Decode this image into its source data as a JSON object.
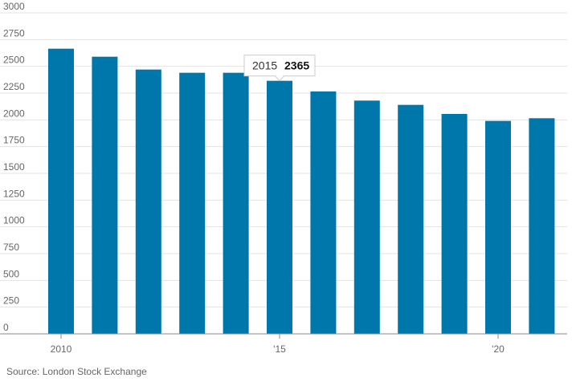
{
  "chart_data": {
    "type": "bar",
    "categories": [
      "2010",
      "2011",
      "2012",
      "2013",
      "2014",
      "2015",
      "2016",
      "2017",
      "2018",
      "2019",
      "2020",
      "2021"
    ],
    "values": [
      2665,
      2590,
      2470,
      2440,
      2440,
      2365,
      2265,
      2180,
      2140,
      2055,
      1990,
      2015
    ],
    "y_ticks": [
      0,
      250,
      500,
      750,
      1000,
      1250,
      1500,
      1750,
      2000,
      2250,
      2500,
      2750,
      3000
    ],
    "x_tick_labels": [
      {
        "index": 0,
        "label": "2010"
      },
      {
        "index": 5,
        "label": "'15"
      },
      {
        "index": 10,
        "label": "'20"
      }
    ],
    "ylim": [
      0,
      3000
    ],
    "grid": true,
    "bar_color": "#0077aa",
    "tooltip": {
      "index": 5,
      "year": "2015",
      "value": "2365"
    },
    "source": "Source: London Stock Exchange"
  }
}
